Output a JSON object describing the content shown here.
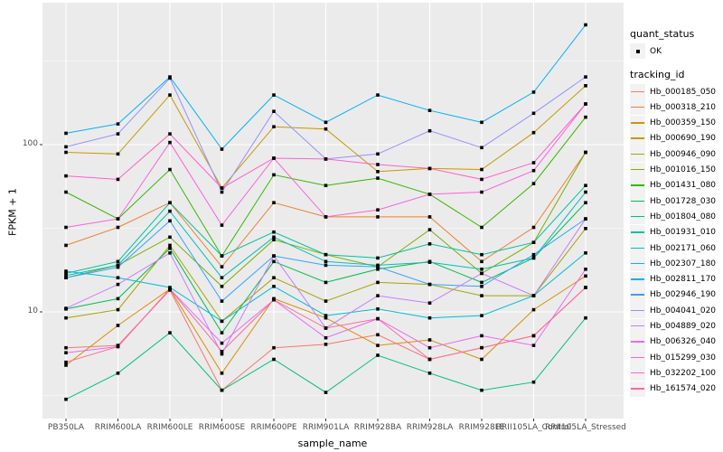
{
  "chart": {
    "y_axis": {
      "title": "FPKM + 1",
      "tick_labels": [
        "100",
        "10"
      ],
      "tick_values": [
        100,
        10
      ]
    },
    "x_axis": {
      "title": "sample_name"
    },
    "legends": {
      "quant_status": {
        "title": "quant_status",
        "items": [
          {
            "label": "OK",
            "symbol": "black-square-point"
          }
        ]
      },
      "tracking_id": {
        "title": "tracking_id"
      }
    },
    "colors": {
      "panel_bg": "#EBEBEB",
      "grid": "#FFFFFF",
      "tick_text": "#4D4D4D",
      "tick_mark": "#333333",
      "point": "#000000",
      "legend_key_bg": "#F2F2F2"
    }
  },
  "chart_data": {
    "type": "line",
    "title": "",
    "xlabel": "sample_name",
    "ylabel": "FPKM + 1",
    "yscale": "log10",
    "ylim": [
      2.5,
      600
    ],
    "grid": true,
    "legend_position": "right",
    "marker": "black-square",
    "categories": [
      "PB350LA",
      "RRIM600LA",
      "RRIM600LE",
      "RRIM600SE",
      "RRIM600PE",
      "RRIM901LA",
      "RRIM928BA",
      "RRIM928LA",
      "RRIM928LE",
      "RRII105LA_Control",
      "RRII105LA_Stressed"
    ],
    "series": [
      {
        "name": "Hb_000185_050",
        "color": "#F8766D",
        "values": [
          6.1,
          6.3,
          13.5,
          3.4,
          6.1,
          6.4,
          7.3,
          5.2,
          6.1,
          7.2,
          14
        ]
      },
      {
        "name": "Hb_000318_210",
        "color": "#EA8331",
        "values": [
          25,
          32,
          45,
          18.6,
          45,
          37,
          37,
          37,
          20,
          32,
          90
        ]
      },
      {
        "name": "Hb_000359_150",
        "color": "#D89000",
        "values": [
          4.8,
          8.3,
          13.7,
          4.3,
          12,
          9.2,
          6.3,
          6.8,
          5.2,
          10.3,
          16.4
        ]
      },
      {
        "name": "Hb_000690_190",
        "color": "#C49A00",
        "values": [
          90,
          88,
          198,
          55,
          128,
          124,
          69,
          72,
          71,
          118,
          225
        ]
      },
      {
        "name": "Hb_000946_090",
        "color": "#A3A500",
        "values": [
          9.2,
          10.3,
          25,
          8.8,
          16,
          11.6,
          15,
          14.6,
          12.5,
          12.5,
          31.5
        ]
      },
      {
        "name": "Hb_001016_150",
        "color": "#7CAE00",
        "values": [
          16,
          19,
          28,
          14.2,
          27,
          22,
          18.6,
          31,
          17,
          26,
          90
        ]
      },
      {
        "name": "Hb_001431_080",
        "color": "#39B600",
        "values": [
          52,
          36,
          71,
          21.6,
          66,
          57,
          63,
          50.5,
          32,
          58.5,
          146
        ]
      },
      {
        "name": "Hb_001728_030",
        "color": "#00BB4E",
        "values": [
          10.4,
          12,
          24,
          7.5,
          20,
          15,
          18,
          20,
          15,
          21,
          45
        ]
      },
      {
        "name": "Hb_001804_080",
        "color": "#00C079",
        "values": [
          3.0,
          4.3,
          7.5,
          3.4,
          5.2,
          3.3,
          5.5,
          4.3,
          3.4,
          3.8,
          9.2
        ]
      },
      {
        "name": "Hb_001931_010",
        "color": "#00C19C",
        "values": [
          17,
          20,
          45,
          21.6,
          30,
          22,
          21,
          25.5,
          22,
          26,
          57
        ]
      },
      {
        "name": "Hb_002171_060",
        "color": "#00C0B8",
        "values": [
          16.5,
          19,
          40,
          16,
          28,
          20,
          19,
          19.8,
          18,
          21,
          52
        ]
      },
      {
        "name": "Hb_002307_180",
        "color": "#00BCD8",
        "values": [
          17.5,
          16,
          14,
          8.8,
          14.2,
          9.5,
          10.4,
          9.2,
          9.5,
          12.5,
          22.5
        ]
      },
      {
        "name": "Hb_002811_170",
        "color": "#00B0F6",
        "values": [
          117,
          133,
          254,
          94,
          198,
          136,
          198,
          160,
          136,
          206,
          520
        ]
      },
      {
        "name": "Hb_002946_190",
        "color": "#35A2FF",
        "values": [
          16,
          18.5,
          35,
          11.6,
          21.6,
          19,
          18.6,
          14.6,
          14.2,
          22,
          36
        ]
      },
      {
        "name": "Hb_004041_020",
        "color": "#9590FF",
        "values": [
          97,
          116,
          250,
          52,
          158,
          82,
          88,
          121,
          96,
          154,
          254
        ]
      },
      {
        "name": "Hb_004889_020",
        "color": "#C77CFF",
        "values": [
          10.5,
          14.6,
          22.5,
          5.6,
          21.6,
          8.0,
          12.5,
          11.3,
          17,
          12.5,
          36
        ]
      },
      {
        "name": "Hb_006326_040",
        "color": "#E76BF3",
        "values": [
          5.7,
          6.2,
          13.7,
          6.5,
          11.8,
          7.0,
          9.1,
          6.1,
          7.2,
          6.3,
          18
        ]
      },
      {
        "name": "Hb_015299_030",
        "color": "#FA62DB",
        "values": [
          32,
          36,
          103,
          33,
          83,
          37,
          40.7,
          50.5,
          52,
          70,
          175
        ]
      },
      {
        "name": "Hb_032202_100",
        "color": "#FF61C9",
        "values": [
          65,
          62,
          116,
          55,
          83,
          82,
          76,
          72,
          62,
          78,
          175
        ]
      },
      {
        "name": "Hb_161574_020",
        "color": "#FF6A98",
        "values": [
          5.0,
          6.2,
          13.7,
          5.8,
          11.8,
          8.0,
          9.1,
          5.2,
          6.1,
          7.2,
          14
        ]
      }
    ]
  }
}
